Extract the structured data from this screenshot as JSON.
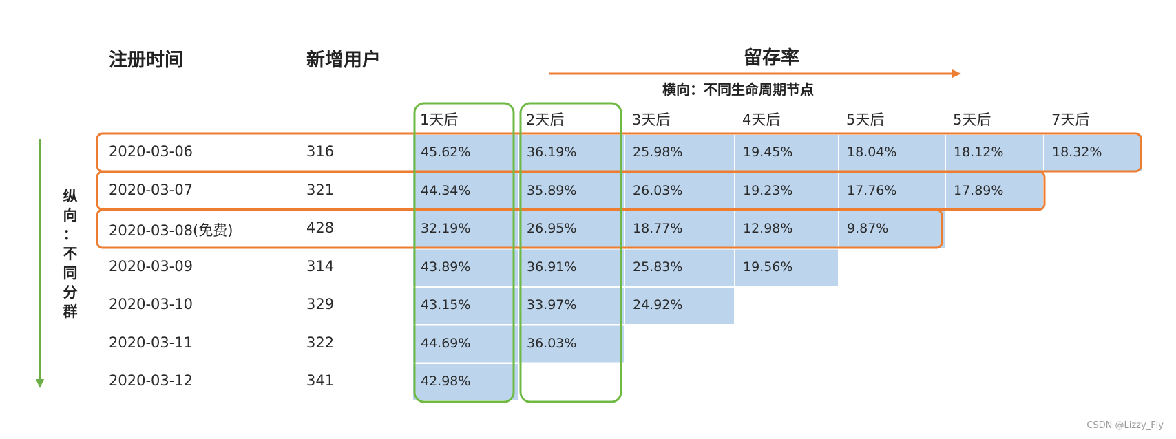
{
  "headers": {
    "reg_time": "注册时间",
    "new_users": "新增用户",
    "retention": "留存率",
    "horizontal_note": "横向：不同生命周期节点",
    "vertical_note": "纵向：不同分群"
  },
  "colors": {
    "cell_fill": "#bdd5ec",
    "orange": "#ec7d31",
    "green": "#6fb945",
    "green_arrow": "#6cae46"
  },
  "chart_data": {
    "type": "table",
    "columns": [
      "1天后",
      "2天后",
      "3天后",
      "4天后",
      "5天后",
      "5天后",
      "7天后"
    ],
    "rows": [
      {
        "date": "2020-03-06",
        "users": "316",
        "values": [
          "45.62%",
          "36.19%",
          "25.98%",
          "19.45%",
          "18.04%",
          "18.12%",
          "18.32%"
        ]
      },
      {
        "date": "2020-03-07",
        "users": "321",
        "values": [
          "44.34%",
          "35.89%",
          "26.03%",
          "19.23%",
          "17.76%",
          "17.89%"
        ]
      },
      {
        "date": "2020-03-08(免费)",
        "users": "428",
        "values": [
          "32.19%",
          "26.95%",
          "18.77%",
          "12.98%",
          "9.87%"
        ]
      },
      {
        "date": "2020-03-09",
        "users": "314",
        "values": [
          "43.89%",
          "36.91%",
          "25.83%",
          "19.56%"
        ]
      },
      {
        "date": "2020-03-10",
        "users": "329",
        "values": [
          "43.15%",
          "33.97%",
          "24.92%"
        ]
      },
      {
        "date": "2020-03-11",
        "users": "322",
        "values": [
          "44.69%",
          "36.03%"
        ]
      },
      {
        "date": "2020-03-12",
        "users": "341",
        "values": [
          "42.98%"
        ]
      }
    ]
  },
  "watermark": "CSDN @Lizzy_Fly"
}
